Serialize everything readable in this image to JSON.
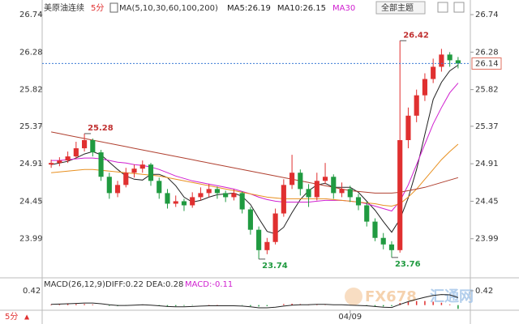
{
  "chart_data": {
    "type": "candlestick",
    "title": "美原油连续",
    "period": "5分",
    "indicator": "MA(5,10,30,60,100,200)",
    "legend": [
      {
        "name": "MA5:26.19",
        "color": "#222222"
      },
      {
        "name": "MA10:26.15",
        "color": "#222222"
      },
      {
        "name": "MA30",
        "color": "#d020d0"
      }
    ],
    "theme_button": "全部主题",
    "categories": [
      null,
      null,
      null,
      null,
      null,
      null,
      null,
      null,
      null,
      null,
      null,
      null,
      null,
      null,
      null,
      null,
      null,
      null,
      null,
      null,
      null,
      null,
      null,
      null,
      null,
      null,
      null,
      null,
      null,
      null,
      null,
      null,
      null,
      null,
      null,
      null,
      "04/09",
      null,
      null,
      null,
      null,
      null,
      null,
      null,
      null,
      null,
      null,
      null,
      null,
      null
    ],
    "open": [
      24.9,
      24.92,
      24.95,
      25.0,
      25.1,
      25.2,
      25.05,
      24.75,
      24.55,
      24.65,
      24.8,
      24.85,
      24.9,
      24.7,
      24.55,
      24.42,
      24.45,
      24.4,
      24.5,
      24.55,
      24.6,
      24.55,
      24.5,
      24.55,
      24.35,
      24.1,
      23.85,
      23.95,
      24.3,
      24.65,
      24.8,
      24.6,
      24.5,
      24.7,
      24.75,
      24.55,
      24.6,
      24.5,
      24.4,
      24.2,
      24.0,
      23.92,
      23.85,
      25.2,
      25.5,
      25.75,
      25.95,
      26.1,
      26.25,
      26.18
    ],
    "high": [
      24.96,
      24.99,
      25.06,
      25.18,
      25.28,
      25.22,
      25.08,
      24.8,
      24.7,
      24.86,
      24.9,
      24.95,
      24.92,
      24.74,
      24.6,
      24.52,
      24.48,
      24.56,
      24.62,
      24.66,
      24.63,
      24.58,
      24.6,
      24.57,
      24.38,
      24.14,
      24.0,
      24.36,
      24.72,
      25.02,
      24.84,
      24.66,
      24.8,
      24.92,
      24.78,
      24.68,
      24.64,
      24.54,
      24.44,
      24.24,
      24.06,
      23.96,
      26.42,
      25.6,
      25.82,
      26.02,
      26.2,
      26.32,
      26.28,
      26.22
    ],
    "low": [
      24.86,
      24.88,
      24.92,
      24.97,
      25.06,
      25.0,
      24.7,
      24.48,
      24.5,
      24.62,
      24.74,
      24.8,
      24.64,
      24.48,
      24.36,
      24.38,
      24.33,
      24.37,
      24.46,
      24.5,
      24.48,
      24.44,
      24.46,
      24.3,
      24.04,
      23.74,
      23.8,
      23.92,
      24.26,
      24.6,
      24.52,
      24.38,
      24.46,
      24.66,
      24.48,
      24.5,
      24.44,
      24.34,
      24.14,
      23.96,
      23.86,
      23.76,
      23.82,
      25.1,
      25.42,
      25.68,
      25.9,
      26.04,
      26.1,
      26.08
    ],
    "close": [
      24.92,
      24.95,
      25.0,
      25.1,
      25.2,
      25.05,
      24.75,
      24.55,
      24.65,
      24.8,
      24.85,
      24.9,
      24.7,
      24.55,
      24.42,
      24.45,
      24.4,
      24.5,
      24.55,
      24.6,
      24.55,
      24.5,
      24.55,
      24.35,
      24.1,
      23.85,
      23.95,
      24.3,
      24.65,
      24.8,
      24.6,
      24.5,
      24.7,
      24.75,
      24.55,
      24.6,
      24.5,
      24.4,
      24.2,
      24.0,
      23.92,
      23.85,
      25.2,
      25.5,
      25.75,
      25.95,
      26.1,
      26.25,
      26.18,
      26.14
    ],
    "up_color": "#e03030",
    "down_color": "#209a40",
    "ma_lines": [
      {
        "color": "#222222",
        "values": [
          24.9,
          24.92,
          24.94,
          24.98,
          25.03,
          25.06,
          25.02,
          24.93,
          24.84,
          24.76,
          24.72,
          24.71,
          24.78,
          24.78,
          24.74,
          24.64,
          24.5,
          24.44,
          24.46,
          24.5,
          24.53,
          24.54,
          24.55,
          24.51,
          24.41,
          24.24,
          24.08,
          24.05,
          24.13,
          24.31,
          24.47,
          24.58,
          24.65,
          24.67,
          24.62,
          24.62,
          24.62,
          24.56,
          24.45,
          24.34,
          24.2,
          24.07,
          24.23,
          24.49,
          24.84,
          25.27,
          25.7,
          25.91,
          26.05,
          26.12
        ]
      },
      {
        "color": "#d020d0",
        "values": [
          24.95,
          24.95,
          24.96,
          24.97,
          24.98,
          24.98,
          24.97,
          24.95,
          24.93,
          24.92,
          24.9,
          24.89,
          24.87,
          24.84,
          24.8,
          24.76,
          24.73,
          24.7,
          24.68,
          24.66,
          24.64,
          24.62,
          24.6,
          24.57,
          24.54,
          24.5,
          24.47,
          24.45,
          24.44,
          24.44,
          24.44,
          24.44,
          24.45,
          24.46,
          24.46,
          24.46,
          24.45,
          24.44,
          24.42,
          24.39,
          24.36,
          24.33,
          24.45,
          24.65,
          24.9,
          25.15,
          25.4,
          25.6,
          25.78,
          25.9
        ]
      },
      {
        "color": "#e89020",
        "values": [
          24.8,
          24.81,
          24.82,
          24.83,
          24.84,
          24.84,
          24.83,
          24.82,
          24.81,
          24.8,
          24.79,
          24.78,
          24.77,
          24.76,
          24.74,
          24.72,
          24.7,
          24.68,
          24.66,
          24.64,
          24.62,
          24.6,
          24.58,
          24.56,
          24.54,
          24.52,
          24.5,
          24.49,
          24.48,
          24.48,
          24.48,
          24.48,
          24.48,
          24.48,
          24.47,
          24.46,
          24.45,
          24.44,
          24.43,
          24.42,
          24.4,
          24.39,
          24.42,
          24.5,
          24.6,
          24.72,
          24.84,
          24.96,
          25.06,
          25.15
        ]
      },
      {
        "color": "#b04030",
        "values": [
          25.3,
          25.28,
          25.26,
          25.24,
          25.22,
          25.2,
          25.18,
          25.16,
          25.14,
          25.12,
          25.1,
          25.08,
          25.06,
          25.04,
          25.02,
          25.0,
          24.98,
          24.96,
          24.94,
          24.92,
          24.9,
          24.88,
          24.86,
          24.84,
          24.82,
          24.8,
          24.78,
          24.76,
          24.74,
          24.72,
          24.7,
          24.68,
          24.66,
          24.64,
          24.62,
          24.6,
          24.58,
          24.57,
          24.56,
          24.55,
          24.55,
          24.55,
          24.56,
          24.58,
          24.6,
          24.62,
          24.65,
          24.68,
          24.71,
          24.74
        ]
      }
    ],
    "ylim": [
      23.54,
      26.84
    ],
    "yticks": [
      26.74,
      26.28,
      25.82,
      25.37,
      24.91,
      24.45,
      23.99
    ],
    "macd": {
      "title": "MACD(26,12,9)",
      "diff_label": "DIFF:0.22",
      "dea_label": "DEA:0.28",
      "macd_label": "MACD:-0.11",
      "ylim": [
        -0.15,
        0.75
      ],
      "yticks": [
        0.42
      ],
      "diff": [
        0.02,
        0.03,
        0.04,
        0.05,
        0.06,
        0.06,
        0.04,
        0.01,
        -0.01,
        -0.01,
        0,
        0.01,
        0,
        -0.02,
        -0.04,
        -0.05,
        -0.05,
        -0.04,
        -0.03,
        -0.02,
        -0.02,
        -0.02,
        -0.02,
        -0.03,
        -0.05,
        -0.08,
        -0.08,
        -0.06,
        -0.03,
        0,
        0.01,
        0.01,
        0.02,
        0.02,
        0.01,
        0.01,
        0,
        -0.01,
        -0.02,
        -0.04,
        -0.06,
        -0.07,
        0.02,
        0.1,
        0.17,
        0.23,
        0.28,
        0.31,
        0.3,
        0.22
      ],
      "hist": [
        0.02,
        0.02,
        0.03,
        0.03,
        0.03,
        0.02,
        0,
        -0.02,
        -0.03,
        -0.02,
        0,
        0.01,
        0,
        -0.02,
        -0.03,
        -0.03,
        -0.02,
        -0.01,
        0,
        0.01,
        0.01,
        0,
        0,
        -0.01,
        -0.03,
        -0.04,
        -0.03,
        0,
        0.03,
        0.04,
        0.03,
        0.02,
        0.02,
        0.01,
        0,
        0,
        -0.01,
        -0.02,
        -0.03,
        -0.03,
        -0.04,
        -0.03,
        0.06,
        0.1,
        0.12,
        0.12,
        0.1,
        0.07,
        0.02,
        -0.11
      ]
    },
    "watermark": [
      "FX678",
      "汇通网"
    ]
  }
}
